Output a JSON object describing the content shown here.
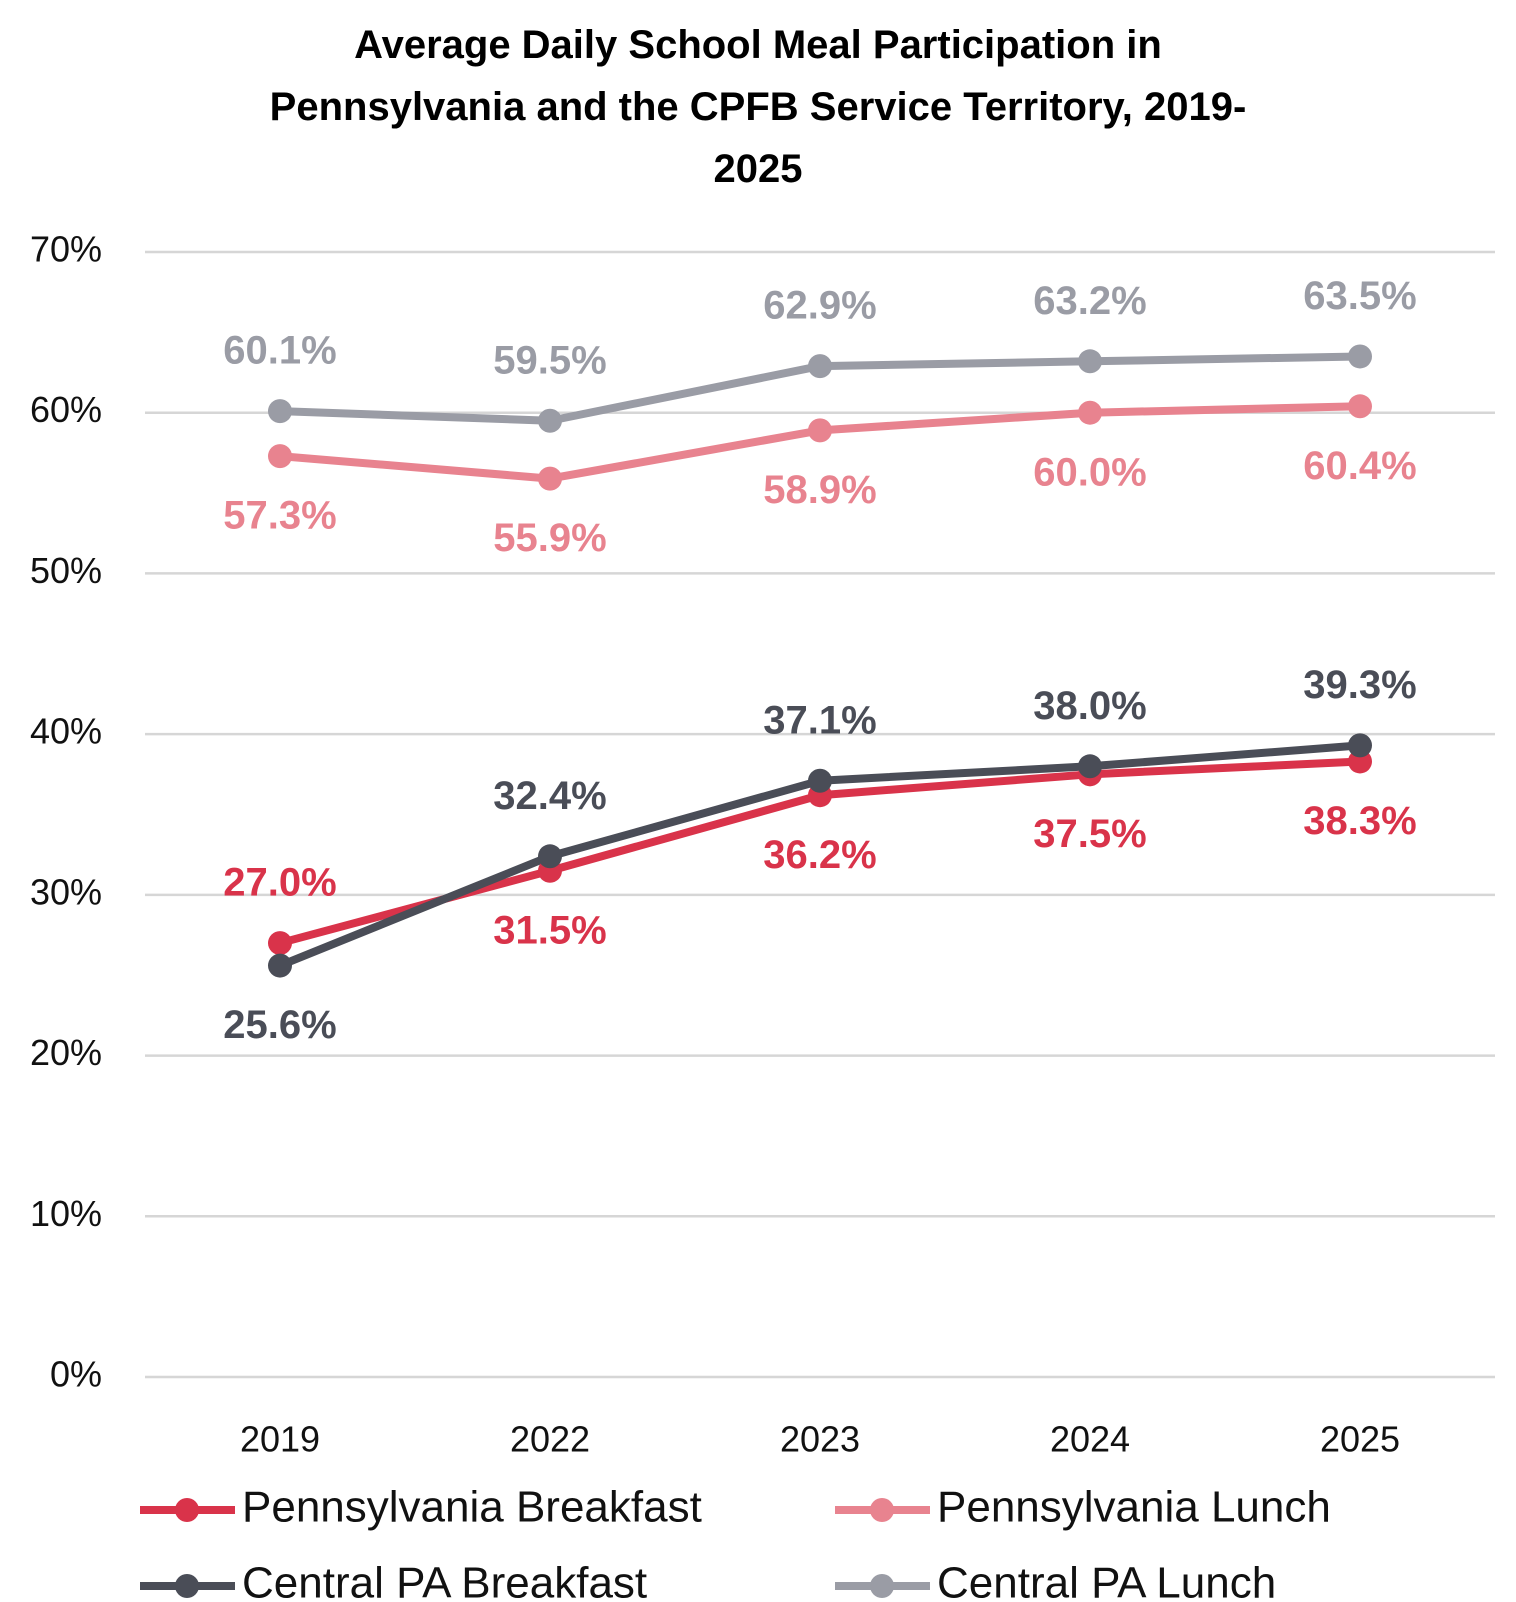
{
  "chart_data": {
    "type": "line",
    "title": "Average Daily School Meal Participation in Pennsylvania and the CPFB Service Territory, 2019-2025",
    "categories": [
      "2019",
      "2022",
      "2023",
      "2024",
      "2025"
    ],
    "series": [
      {
        "name": "Pennsylvania Breakfast",
        "color": "#d9334a",
        "values": [
          27.0,
          31.5,
          36.2,
          37.5,
          38.3
        ],
        "value_labels": [
          "27.0%",
          "31.5%",
          "36.2%",
          "37.5%",
          "38.3%"
        ]
      },
      {
        "name": "Pennsylvania Lunch",
        "color": "#e8838f",
        "values": [
          57.3,
          55.9,
          58.9,
          60.0,
          60.4
        ],
        "value_labels": [
          "57.3%",
          "55.9%",
          "58.9%",
          "60.0%",
          "60.4%"
        ]
      },
      {
        "name": "Central PA Breakfast",
        "color": "#4a4d57",
        "values": [
          25.6,
          32.4,
          37.1,
          38.0,
          39.3
        ],
        "value_labels": [
          "25.6%",
          "32.4%",
          "37.1%",
          "38.0%",
          "39.3%"
        ]
      },
      {
        "name": "Central PA Lunch",
        "color": "#9a9ca5",
        "values": [
          60.1,
          59.5,
          62.9,
          63.2,
          63.5
        ],
        "value_labels": [
          "60.1%",
          "59.5%",
          "62.9%",
          "63.2%",
          "63.5%"
        ]
      }
    ],
    "ylim": [
      0,
      70
    ],
    "yticks": [
      {
        "value": 0,
        "label": "0%"
      },
      {
        "value": 10,
        "label": "10%"
      },
      {
        "value": 20,
        "label": "20%"
      },
      {
        "value": 30,
        "label": "30%"
      },
      {
        "value": 40,
        "label": "40%"
      },
      {
        "value": 50,
        "label": "50%"
      },
      {
        "value": 60,
        "label": "60%"
      },
      {
        "value": 70,
        "label": "70%"
      }
    ],
    "grid": true,
    "legend": "bottom"
  }
}
